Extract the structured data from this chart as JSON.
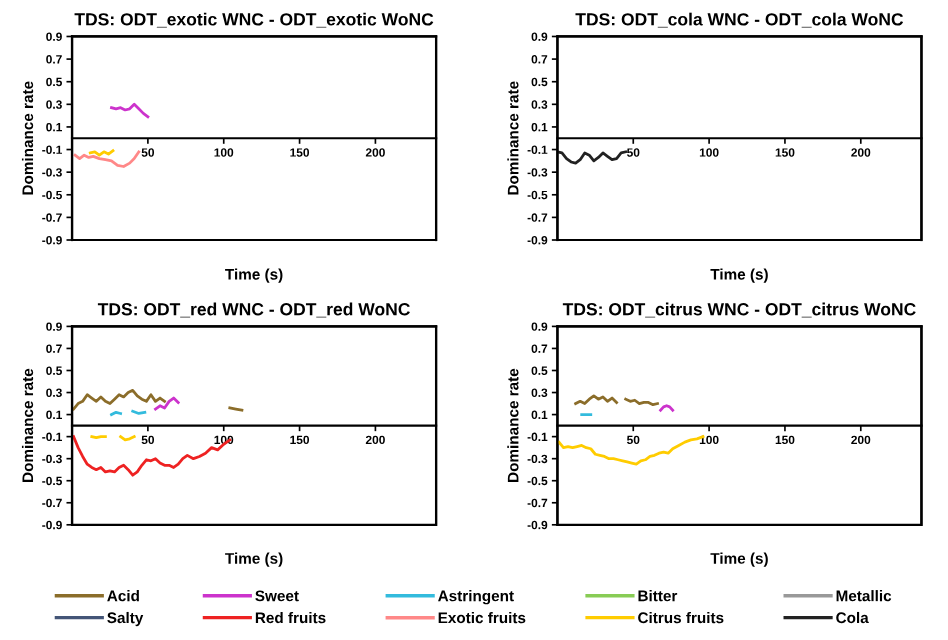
{
  "chart_data": [
    {
      "type": "line",
      "title": "TDS: ODT_exotic WNC - ODT_exotic WoNC",
      "xlabel": "Time (s)",
      "ylabel": "Dominance rate",
      "xlim": [
        0,
        240
      ],
      "xticks": [
        50,
        100,
        150,
        200
      ],
      "ylim": [
        -0.9,
        0.9
      ],
      "yticks": [
        -0.9,
        -0.7,
        -0.5,
        -0.3,
        -0.1,
        0.1,
        0.3,
        0.5,
        0.7,
        0.9
      ],
      "grid": false,
      "marker": "none",
      "line_style": "solid",
      "series": [
        {
          "color": "#cc33cc",
          "x": [
            26,
            29,
            32,
            35,
            38,
            41,
            44,
            47,
            50
          ],
          "values": [
            0.27,
            0.26,
            0.27,
            0.25,
            0.26,
            0.3,
            0.26,
            0.22,
            0.19
          ]
        },
        {
          "color": "#ff8888",
          "x": [
            2,
            5,
            8,
            11,
            14,
            18,
            22,
            26,
            30,
            34,
            38,
            41,
            44
          ],
          "values": [
            -0.15,
            -0.18,
            -0.15,
            -0.17,
            -0.16,
            -0.18,
            -0.19,
            -0.2,
            -0.24,
            -0.25,
            -0.22,
            -0.18,
            -0.12
          ]
        },
        {
          "color": "#ffcc00",
          "x": [
            12,
            15,
            18,
            21,
            24,
            27
          ],
          "values": [
            -0.13,
            -0.12,
            -0.15,
            -0.12,
            -0.14,
            -0.11
          ]
        }
      ]
    },
    {
      "type": "line",
      "title": "TDS: ODT_cola WNC - ODT_cola WoNC",
      "xlabel": "Time (s)",
      "ylabel": "Dominance rate",
      "xlim": [
        0,
        240
      ],
      "xticks": [
        50,
        100,
        150,
        200
      ],
      "ylim": [
        -0.9,
        0.9
      ],
      "yticks": [
        -0.9,
        -0.7,
        -0.5,
        -0.3,
        -0.1,
        0.1,
        0.3,
        0.5,
        0.7,
        0.9
      ],
      "grid": false,
      "marker": "none",
      "line_style": "solid",
      "series": [
        {
          "color": "#222222",
          "x": [
            0,
            3,
            6,
            9,
            12,
            15,
            18,
            21,
            24,
            27,
            30,
            33,
            36,
            39,
            42,
            45
          ],
          "values": [
            -0.12,
            -0.13,
            -0.18,
            -0.21,
            -0.22,
            -0.19,
            -0.13,
            -0.15,
            -0.2,
            -0.17,
            -0.13,
            -0.16,
            -0.19,
            -0.18,
            -0.13,
            -0.12
          ]
        }
      ]
    },
    {
      "type": "line",
      "title": "TDS: ODT_red WNC - ODT_red WoNC",
      "xlabel": "Time (s)",
      "ylabel": "Dominance rate",
      "xlim": [
        0,
        240
      ],
      "xticks": [
        50,
        100,
        150,
        200
      ],
      "ylim": [
        -0.9,
        0.9
      ],
      "yticks": [
        -0.9,
        -0.7,
        -0.5,
        -0.3,
        -0.1,
        0.1,
        0.3,
        0.5,
        0.7,
        0.9
      ],
      "legend": "bottom",
      "grid": false,
      "marker": "none",
      "line_style": "solid",
      "series": [
        {
          "name": "Acid",
          "color": "#8b6d2a",
          "x": [
            1,
            4,
            7,
            10,
            13,
            16,
            19,
            22,
            25,
            28,
            31,
            34,
            37,
            40,
            43,
            46,
            49,
            52,
            55,
            58,
            61
          ],
          "values": [
            0.15,
            0.2,
            0.22,
            0.28,
            0.25,
            0.22,
            0.26,
            0.22,
            0.2,
            0.24,
            0.28,
            0.26,
            0.3,
            0.32,
            0.27,
            0.24,
            0.22,
            0.28,
            0.22,
            0.25,
            0.22
          ]
        },
        {
          "color": "#8b6d2a",
          "x": [
            104,
            108,
            112
          ],
          "values": [
            0.16,
            0.15,
            0.14
          ]
        },
        {
          "name": "Sweet",
          "color": "#cc33cc",
          "x": [
            55,
            58,
            61,
            64,
            67,
            70
          ],
          "values": [
            0.15,
            0.18,
            0.16,
            0.22,
            0.25,
            0.21
          ]
        },
        {
          "name": "Astringent",
          "color": "#33bbdd",
          "x": [
            26,
            29,
            32,
            null,
            40,
            44,
            48
          ],
          "values": [
            0.1,
            0.12,
            0.11,
            null,
            0.13,
            0.11,
            0.12
          ]
        },
        {
          "name": "Bitter",
          "color": "#88cc55"
        },
        {
          "name": "Metallic",
          "color": "#999999"
        },
        {
          "name": "Salty",
          "color": "#445577"
        },
        {
          "name": "Red fruits",
          "color": "#ee2222",
          "x": [
            1,
            4,
            7,
            10,
            13,
            16,
            19,
            22,
            25,
            28,
            31,
            34,
            37,
            40,
            43,
            46,
            49,
            52,
            55,
            58,
            61,
            64,
            67,
            70,
            73,
            76,
            80,
            84,
            88,
            92,
            96,
            100,
            104
          ],
          "values": [
            -0.1,
            -0.2,
            -0.28,
            -0.35,
            -0.38,
            -0.4,
            -0.38,
            -0.42,
            -0.41,
            -0.42,
            -0.38,
            -0.36,
            -0.4,
            -0.45,
            -0.42,
            -0.36,
            -0.31,
            -0.32,
            -0.3,
            -0.34,
            -0.36,
            -0.36,
            -0.38,
            -0.35,
            -0.3,
            -0.27,
            -0.3,
            -0.28,
            -0.25,
            -0.2,
            -0.22,
            -0.17,
            -0.13
          ]
        },
        {
          "name": "Exotic fruits",
          "color": "#ff8888"
        },
        {
          "name": "Citrus fruits",
          "color": "#ffcc00",
          "x": [
            13,
            16,
            19,
            22,
            null,
            32,
            35,
            38,
            41
          ],
          "values": [
            -0.1,
            -0.11,
            -0.1,
            -0.1,
            null,
            -0.1,
            -0.13,
            -0.12,
            -0.1
          ]
        },
        {
          "name": "Cola",
          "color": "#222222"
        }
      ]
    },
    {
      "type": "line",
      "title": "TDS: ODT_citrus WNC - ODT_citrus WoNC",
      "xlabel": "Time (s)",
      "ylabel": "Dominance rate",
      "xlim": [
        0,
        240
      ],
      "xticks": [
        50,
        100,
        150,
        200
      ],
      "ylim": [
        -0.9,
        0.9
      ],
      "yticks": [
        -0.9,
        -0.7,
        -0.5,
        -0.3,
        -0.1,
        0.1,
        0.3,
        0.5,
        0.7,
        0.9
      ],
      "grid": false,
      "marker": "none",
      "line_style": "solid",
      "series": [
        {
          "color": "#8b6d2a",
          "x": [
            12,
            15,
            18,
            21,
            24,
            27,
            30,
            33,
            36,
            39,
            null,
            45,
            48,
            51,
            54,
            57,
            60,
            63,
            66
          ],
          "values": [
            0.2,
            0.22,
            0.2,
            0.24,
            0.27,
            0.24,
            0.26,
            0.22,
            0.25,
            0.21,
            null,
            0.24,
            0.22,
            0.23,
            0.2,
            0.21,
            0.21,
            0.19,
            0.2
          ]
        },
        {
          "color": "#cc33cc",
          "x": [
            68,
            70,
            72,
            74,
            76
          ],
          "values": [
            0.14,
            0.17,
            0.18,
            0.17,
            0.14
          ]
        },
        {
          "color": "#33bbdd",
          "x": [
            16,
            19,
            22
          ],
          "values": [
            0.1,
            0.1,
            0.1
          ]
        },
        {
          "color": "#ffcc00",
          "x": [
            1,
            4,
            7,
            10,
            13,
            16,
            19,
            22,
            25,
            28,
            31,
            34,
            37,
            40,
            43,
            46,
            49,
            52,
            55,
            58,
            61,
            64,
            67,
            70,
            73,
            76,
            80,
            84,
            88,
            92,
            96
          ],
          "values": [
            -0.15,
            -0.2,
            -0.19,
            -0.2,
            -0.19,
            -0.18,
            -0.2,
            -0.21,
            -0.26,
            -0.27,
            -0.28,
            -0.3,
            -0.3,
            -0.31,
            -0.32,
            -0.33,
            -0.34,
            -0.35,
            -0.32,
            -0.31,
            -0.28,
            -0.27,
            -0.25,
            -0.24,
            -0.25,
            -0.21,
            -0.18,
            -0.15,
            -0.13,
            -0.12,
            -0.1
          ]
        }
      ]
    }
  ]
}
